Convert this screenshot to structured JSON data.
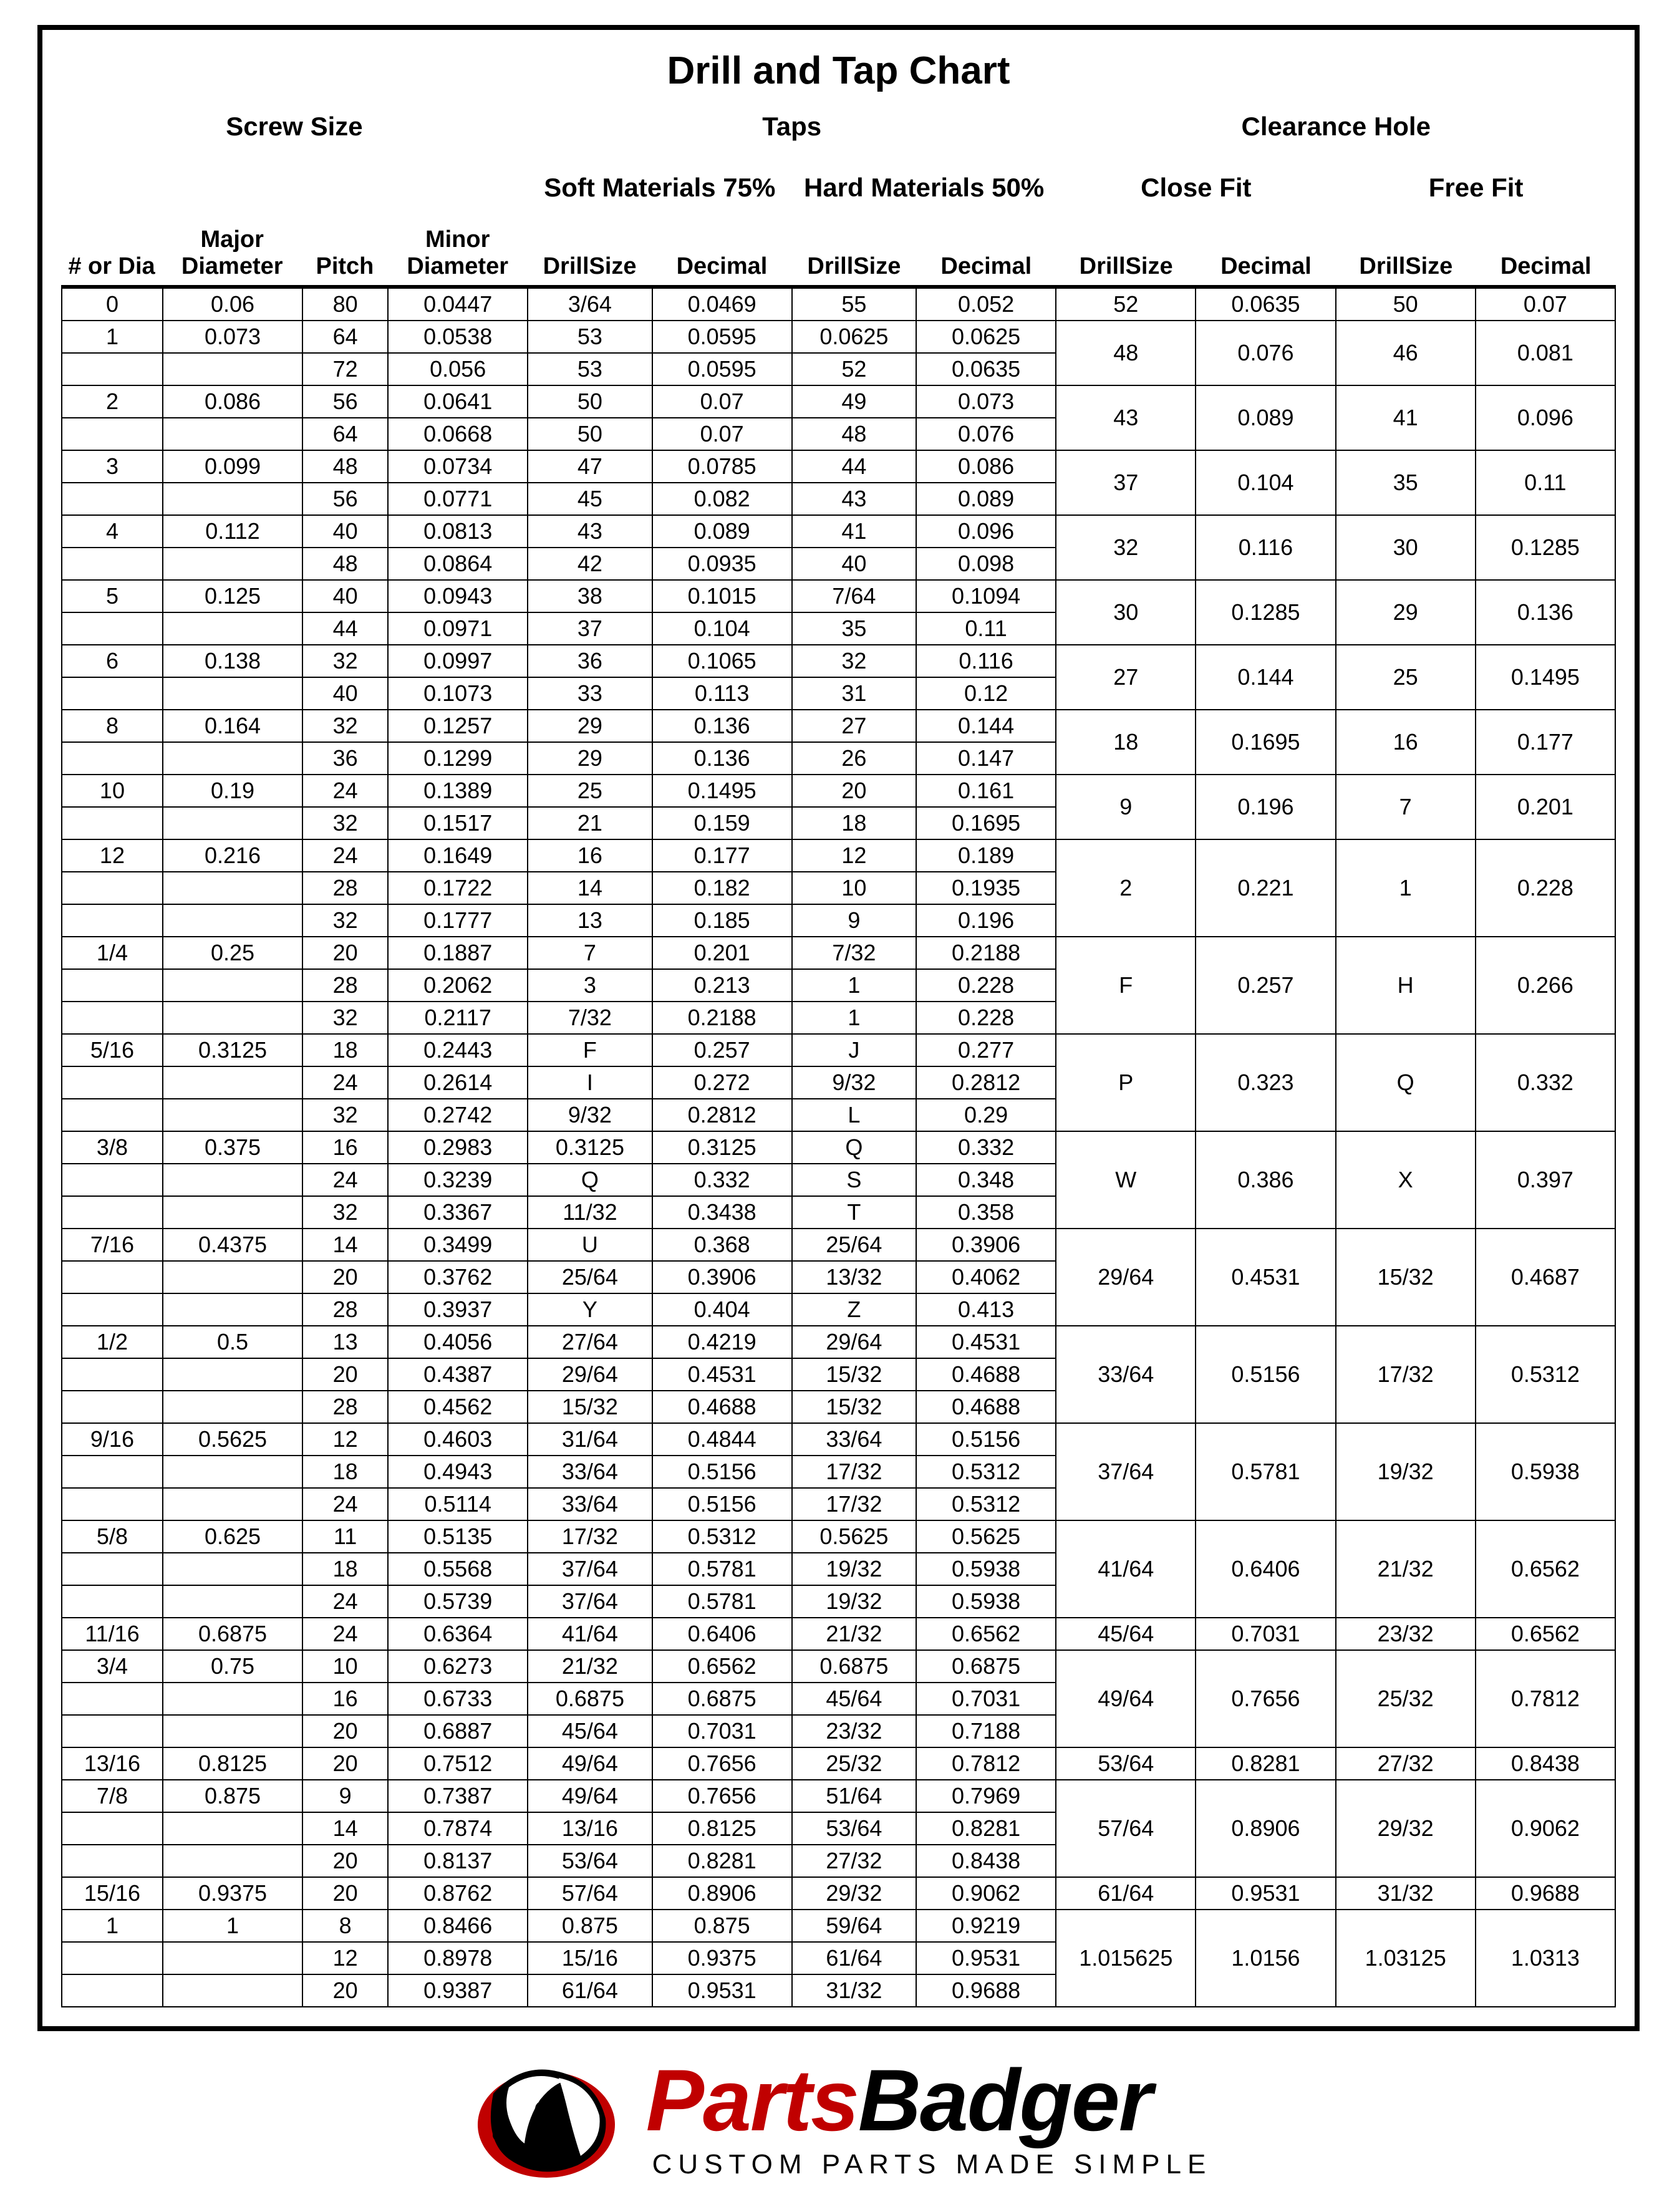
{
  "title": "Drill and Tap Chart",
  "group_headers": {
    "screw_size": "Screw Size",
    "taps": "Taps",
    "clearance": "Clearance Hole"
  },
  "sub_headers": {
    "soft": "Soft Materials 75%",
    "hard": "Hard Materials 50%",
    "close": "Close Fit",
    "free": "Free Fit"
  },
  "columns": [
    "# or Dia",
    "Major Diameter",
    "Pitch",
    "Minor Diameter",
    "DrillSize",
    "Decimal",
    "DrillSize",
    "Decimal",
    "DrillSize",
    "Decimal",
    "DrillSize",
    "Decimal"
  ],
  "col_widths_pct": [
    6.5,
    9,
    5.5,
    9,
    8,
    9,
    8,
    9,
    9,
    9,
    9,
    9
  ],
  "rows": [
    {
      "size": "0",
      "maj": "0.06",
      "pitches": [
        {
          "p": "80",
          "min": "0.0447",
          "sd": "3/64",
          "sx": "0.0469",
          "hd": "55",
          "hx": "0.052"
        }
      ],
      "cd": "52",
      "cx": "0.0635",
      "fd": "50",
      "fx": "0.07"
    },
    {
      "size": "1",
      "maj": "0.073",
      "pitches": [
        {
          "p": "64",
          "min": "0.0538",
          "sd": "53",
          "sx": "0.0595",
          "hd": "0.0625",
          "hx": "0.0625"
        },
        {
          "p": "72",
          "min": "0.056",
          "sd": "53",
          "sx": "0.0595",
          "hd": "52",
          "hx": "0.0635"
        }
      ],
      "cd": "48",
      "cx": "0.076",
      "fd": "46",
      "fx": "0.081"
    },
    {
      "size": "2",
      "maj": "0.086",
      "pitches": [
        {
          "p": "56",
          "min": "0.0641",
          "sd": "50",
          "sx": "0.07",
          "hd": "49",
          "hx": "0.073"
        },
        {
          "p": "64",
          "min": "0.0668",
          "sd": "50",
          "sx": "0.07",
          "hd": "48",
          "hx": "0.076"
        }
      ],
      "cd": "43",
      "cx": "0.089",
      "fd": "41",
      "fx": "0.096"
    },
    {
      "size": "3",
      "maj": "0.099",
      "pitches": [
        {
          "p": "48",
          "min": "0.0734",
          "sd": "47",
          "sx": "0.0785",
          "hd": "44",
          "hx": "0.086"
        },
        {
          "p": "56",
          "min": "0.0771",
          "sd": "45",
          "sx": "0.082",
          "hd": "43",
          "hx": "0.089"
        }
      ],
      "cd": "37",
      "cx": "0.104",
      "fd": "35",
      "fx": "0.11"
    },
    {
      "size": "4",
      "maj": "0.112",
      "pitches": [
        {
          "p": "40",
          "min": "0.0813",
          "sd": "43",
          "sx": "0.089",
          "hd": "41",
          "hx": "0.096"
        },
        {
          "p": "48",
          "min": "0.0864",
          "sd": "42",
          "sx": "0.0935",
          "hd": "40",
          "hx": "0.098"
        }
      ],
      "cd": "32",
      "cx": "0.116",
      "fd": "30",
      "fx": "0.1285"
    },
    {
      "size": "5",
      "maj": "0.125",
      "pitches": [
        {
          "p": "40",
          "min": "0.0943",
          "sd": "38",
          "sx": "0.1015",
          "hd": "7/64",
          "hx": "0.1094"
        },
        {
          "p": "44",
          "min": "0.0971",
          "sd": "37",
          "sx": "0.104",
          "hd": "35",
          "hx": "0.11"
        }
      ],
      "cd": "30",
      "cx": "0.1285",
      "fd": "29",
      "fx": "0.136"
    },
    {
      "size": "6",
      "maj": "0.138",
      "pitches": [
        {
          "p": "32",
          "min": "0.0997",
          "sd": "36",
          "sx": "0.1065",
          "hd": "32",
          "hx": "0.116"
        },
        {
          "p": "40",
          "min": "0.1073",
          "sd": "33",
          "sx": "0.113",
          "hd": "31",
          "hx": "0.12"
        }
      ],
      "cd": "27",
      "cx": "0.144",
      "fd": "25",
      "fx": "0.1495"
    },
    {
      "size": "8",
      "maj": "0.164",
      "pitches": [
        {
          "p": "32",
          "min": "0.1257",
          "sd": "29",
          "sx": "0.136",
          "hd": "27",
          "hx": "0.144"
        },
        {
          "p": "36",
          "min": "0.1299",
          "sd": "29",
          "sx": "0.136",
          "hd": "26",
          "hx": "0.147"
        }
      ],
      "cd": "18",
      "cx": "0.1695",
      "fd": "16",
      "fx": "0.177"
    },
    {
      "size": "10",
      "maj": "0.19",
      "pitches": [
        {
          "p": "24",
          "min": "0.1389",
          "sd": "25",
          "sx": "0.1495",
          "hd": "20",
          "hx": "0.161"
        },
        {
          "p": "32",
          "min": "0.1517",
          "sd": "21",
          "sx": "0.159",
          "hd": "18",
          "hx": "0.1695"
        }
      ],
      "cd": "9",
      "cx": "0.196",
      "fd": "7",
      "fx": "0.201"
    },
    {
      "size": "12",
      "maj": "0.216",
      "pitches": [
        {
          "p": "24",
          "min": "0.1649",
          "sd": "16",
          "sx": "0.177",
          "hd": "12",
          "hx": "0.189"
        },
        {
          "p": "28",
          "min": "0.1722",
          "sd": "14",
          "sx": "0.182",
          "hd": "10",
          "hx": "0.1935"
        },
        {
          "p": "32",
          "min": "0.1777",
          "sd": "13",
          "sx": "0.185",
          "hd": "9",
          "hx": "0.196"
        }
      ],
      "cd": "2",
      "cx": "0.221",
      "fd": "1",
      "fx": "0.228"
    },
    {
      "size": "1/4",
      "maj": "0.25",
      "pitches": [
        {
          "p": "20",
          "min": "0.1887",
          "sd": "7",
          "sx": "0.201",
          "hd": "7/32",
          "hx": "0.2188"
        },
        {
          "p": "28",
          "min": "0.2062",
          "sd": "3",
          "sx": "0.213",
          "hd": "1",
          "hx": "0.228"
        },
        {
          "p": "32",
          "min": "0.2117",
          "sd": "7/32",
          "sx": "0.2188",
          "hd": "1",
          "hx": "0.228"
        }
      ],
      "cd": "F",
      "cx": "0.257",
      "fd": "H",
      "fx": "0.266"
    },
    {
      "size": "5/16",
      "maj": "0.3125",
      "pitches": [
        {
          "p": "18",
          "min": "0.2443",
          "sd": "F",
          "sx": "0.257",
          "hd": "J",
          "hx": "0.277"
        },
        {
          "p": "24",
          "min": "0.2614",
          "sd": "I",
          "sx": "0.272",
          "hd": "9/32",
          "hx": "0.2812"
        },
        {
          "p": "32",
          "min": "0.2742",
          "sd": "9/32",
          "sx": "0.2812",
          "hd": "L",
          "hx": "0.29"
        }
      ],
      "cd": "P",
      "cx": "0.323",
      "fd": "Q",
      "fx": "0.332"
    },
    {
      "size": "3/8",
      "maj": "0.375",
      "pitches": [
        {
          "p": "16",
          "min": "0.2983",
          "sd": "0.3125",
          "sx": "0.3125",
          "hd": "Q",
          "hx": "0.332"
        },
        {
          "p": "24",
          "min": "0.3239",
          "sd": "Q",
          "sx": "0.332",
          "hd": "S",
          "hx": "0.348"
        },
        {
          "p": "32",
          "min": "0.3367",
          "sd": "11/32",
          "sx": "0.3438",
          "hd": "T",
          "hx": "0.358"
        }
      ],
      "cd": "W",
      "cx": "0.386",
      "fd": "X",
      "fx": "0.397"
    },
    {
      "size": "7/16",
      "maj": "0.4375",
      "pitches": [
        {
          "p": "14",
          "min": "0.3499",
          "sd": "U",
          "sx": "0.368",
          "hd": "25/64",
          "hx": "0.3906"
        },
        {
          "p": "20",
          "min": "0.3762",
          "sd": "25/64",
          "sx": "0.3906",
          "hd": "13/32",
          "hx": "0.4062"
        },
        {
          "p": "28",
          "min": "0.3937",
          "sd": "Y",
          "sx": "0.404",
          "hd": "Z",
          "hx": "0.413"
        }
      ],
      "cd": "29/64",
      "cx": "0.4531",
      "fd": "15/32",
      "fx": "0.4687"
    },
    {
      "size": "1/2",
      "maj": "0.5",
      "pitches": [
        {
          "p": "13",
          "min": "0.4056",
          "sd": "27/64",
          "sx": "0.4219",
          "hd": "29/64",
          "hx": "0.4531"
        },
        {
          "p": "20",
          "min": "0.4387",
          "sd": "29/64",
          "sx": "0.4531",
          "hd": "15/32",
          "hx": "0.4688"
        },
        {
          "p": "28",
          "min": "0.4562",
          "sd": "15/32",
          "sx": "0.4688",
          "hd": "15/32",
          "hx": "0.4688"
        }
      ],
      "cd": "33/64",
      "cx": "0.5156",
      "fd": "17/32",
      "fx": "0.5312"
    },
    {
      "size": "9/16",
      "maj": "0.5625",
      "pitches": [
        {
          "p": "12",
          "min": "0.4603",
          "sd": "31/64",
          "sx": "0.4844",
          "hd": "33/64",
          "hx": "0.5156"
        },
        {
          "p": "18",
          "min": "0.4943",
          "sd": "33/64",
          "sx": "0.5156",
          "hd": "17/32",
          "hx": "0.5312"
        },
        {
          "p": "24",
          "min": "0.5114",
          "sd": "33/64",
          "sx": "0.5156",
          "hd": "17/32",
          "hx": "0.5312"
        }
      ],
      "cd": "37/64",
      "cx": "0.5781",
      "fd": "19/32",
      "fx": "0.5938"
    },
    {
      "size": "5/8",
      "maj": "0.625",
      "pitches": [
        {
          "p": "11",
          "min": "0.5135",
          "sd": "17/32",
          "sx": "0.5312",
          "hd": "0.5625",
          "hx": "0.5625"
        },
        {
          "p": "18",
          "min": "0.5568",
          "sd": "37/64",
          "sx": "0.5781",
          "hd": "19/32",
          "hx": "0.5938"
        },
        {
          "p": "24",
          "min": "0.5739",
          "sd": "37/64",
          "sx": "0.5781",
          "hd": "19/32",
          "hx": "0.5938"
        }
      ],
      "cd": "41/64",
      "cx": "0.6406",
      "fd": "21/32",
      "fx": "0.6562"
    },
    {
      "size": "11/16",
      "maj": "0.6875",
      "pitches": [
        {
          "p": "24",
          "min": "0.6364",
          "sd": "41/64",
          "sx": "0.6406",
          "hd": "21/32",
          "hx": "0.6562"
        }
      ],
      "cd": "45/64",
      "cx": "0.7031",
      "fd": "23/32",
      "fx": "0.6562"
    },
    {
      "size": "3/4",
      "maj": "0.75",
      "pitches": [
        {
          "p": "10",
          "min": "0.6273",
          "sd": "21/32",
          "sx": "0.6562",
          "hd": "0.6875",
          "hx": "0.6875"
        },
        {
          "p": "16",
          "min": "0.6733",
          "sd": "0.6875",
          "sx": "0.6875",
          "hd": "45/64",
          "hx": "0.7031"
        },
        {
          "p": "20",
          "min": "0.6887",
          "sd": "45/64",
          "sx": "0.7031",
          "hd": "23/32",
          "hx": "0.7188"
        }
      ],
      "cd": "49/64",
      "cx": "0.7656",
      "fd": "25/32",
      "fx": "0.7812"
    },
    {
      "size": "13/16",
      "maj": "0.8125",
      "pitches": [
        {
          "p": "20",
          "min": "0.7512",
          "sd": "49/64",
          "sx": "0.7656",
          "hd": "25/32",
          "hx": "0.7812"
        }
      ],
      "cd": "53/64",
      "cx": "0.8281",
      "fd": "27/32",
      "fx": "0.8438"
    },
    {
      "size": "7/8",
      "maj": "0.875",
      "pitches": [
        {
          "p": "9",
          "min": "0.7387",
          "sd": "49/64",
          "sx": "0.7656",
          "hd": "51/64",
          "hx": "0.7969"
        },
        {
          "p": "14",
          "min": "0.7874",
          "sd": "13/16",
          "sx": "0.8125",
          "hd": "53/64",
          "hx": "0.8281"
        },
        {
          "p": "20",
          "min": "0.8137",
          "sd": "53/64",
          "sx": "0.8281",
          "hd": "27/32",
          "hx": "0.8438"
        }
      ],
      "cd": "57/64",
      "cx": "0.8906",
      "fd": "29/32",
      "fx": "0.9062"
    },
    {
      "size": "15/16",
      "maj": "0.9375",
      "pitches": [
        {
          "p": "20",
          "min": "0.8762",
          "sd": "57/64",
          "sx": "0.8906",
          "hd": "29/32",
          "hx": "0.9062"
        }
      ],
      "cd": "61/64",
      "cx": "0.9531",
      "fd": "31/32",
      "fx": "0.9688"
    },
    {
      "size": "1",
      "maj": "1",
      "pitches": [
        {
          "p": "8",
          "min": "0.8466",
          "sd": "0.875",
          "sx": "0.875",
          "hd": "59/64",
          "hx": "0.9219"
        },
        {
          "p": "12",
          "min": "0.8978",
          "sd": "15/16",
          "sx": "0.9375",
          "hd": "61/64",
          "hx": "0.9531"
        },
        {
          "p": "20",
          "min": "0.9387",
          "sd": "61/64",
          "sx": "0.9531",
          "hd": "31/32",
          "hx": "0.9688"
        }
      ],
      "cd": "1.015625",
      "cx": "1.0156",
      "fd": "1.03125",
      "fx": "1.0313"
    }
  ],
  "logo": {
    "brand_part1": "Parts",
    "brand_part2": "Badger",
    "tagline": "CUSTOM PARTS MADE SIMPLE",
    "red": "#c00000",
    "black": "#000000"
  }
}
